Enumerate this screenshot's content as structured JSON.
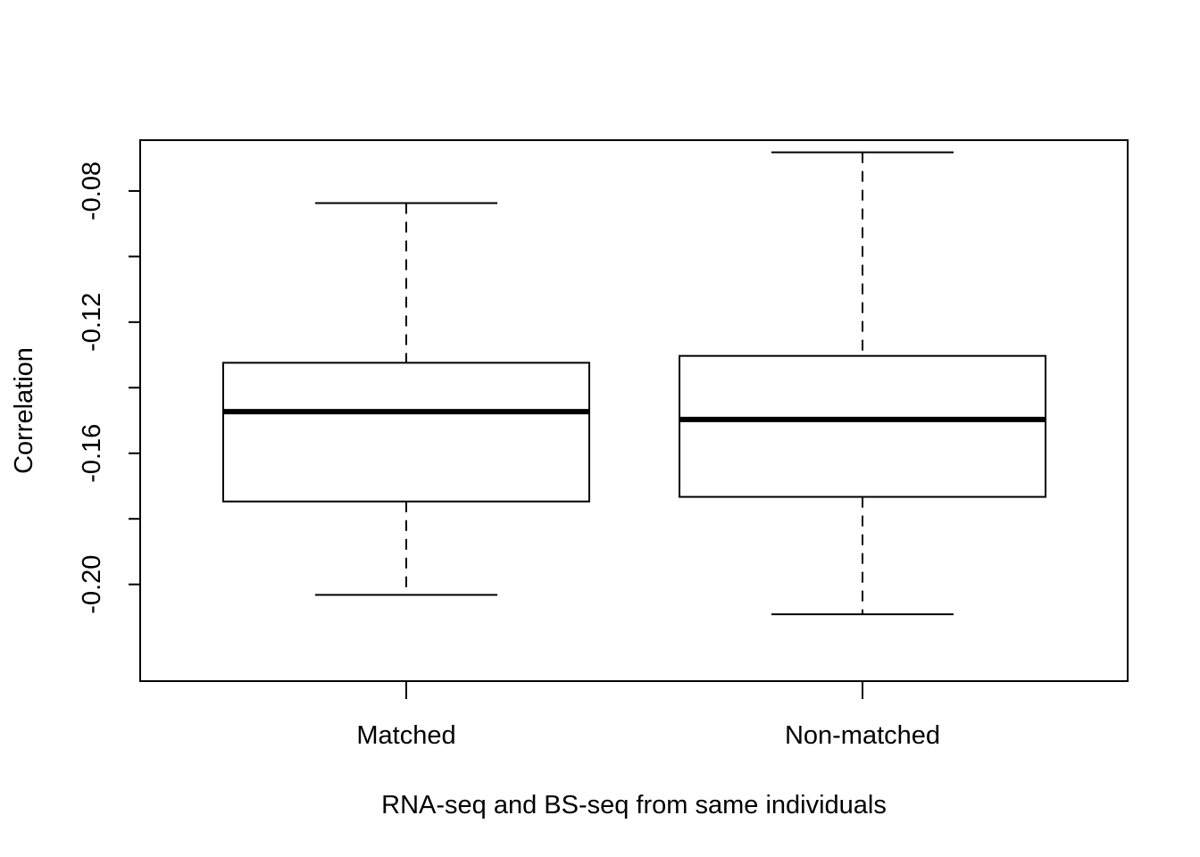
{
  "chart_data": {
    "type": "boxplot",
    "title": "",
    "xlabel": "RNA-seq and BS-seq from same individuals",
    "ylabel": "Correlation",
    "ylim": [
      -0.2295,
      -0.0645
    ],
    "yticks": [
      -0.2,
      -0.18,
      -0.16,
      -0.14,
      -0.12,
      -0.1,
      -0.08
    ],
    "ytick_labels": [
      {
        "value": -0.2,
        "label": "-0.20"
      },
      {
        "value": -0.16,
        "label": "-0.16"
      },
      {
        "value": -0.12,
        "label": "-0.12"
      },
      {
        "value": -0.08,
        "label": "-0.08"
      }
    ],
    "grid": false,
    "legend": "none",
    "categories": [
      "Matched",
      "Non-matched"
    ],
    "boxes": [
      {
        "category": "Matched",
        "whisker_low": -0.2032,
        "q1": -0.1747,
        "median": -0.1473,
        "q3": -0.1324,
        "whisker_high": -0.0837
      },
      {
        "category": "Non-matched",
        "whisker_low": -0.2091,
        "q1": -0.1733,
        "median": -0.1497,
        "q3": -0.1303,
        "whisker_high": -0.0682
      }
    ],
    "colors": {
      "box_fill": "#ffffff",
      "stroke": "#000000"
    }
  }
}
